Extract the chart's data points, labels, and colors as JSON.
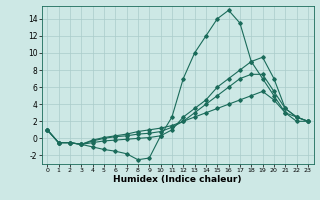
{
  "xlabel": "Humidex (Indice chaleur)",
  "background_color": "#cde8e5",
  "grid_color": "#aaccca",
  "line_color": "#1a6b5a",
  "xlim": [
    -0.5,
    23.5
  ],
  "ylim": [
    -3,
    15.5
  ],
  "yticks": [
    -2,
    0,
    2,
    4,
    6,
    8,
    10,
    12,
    14
  ],
  "xticks": [
    0,
    1,
    2,
    3,
    4,
    5,
    6,
    7,
    8,
    9,
    10,
    11,
    12,
    13,
    14,
    15,
    16,
    17,
    18,
    19,
    20,
    21,
    22,
    23
  ],
  "series": [
    {
      "x": [
        0,
        1,
        2,
        3,
        4,
        5,
        6,
        7,
        8,
        9,
        10,
        11,
        12,
        13,
        14,
        15,
        16,
        17,
        18,
        19,
        20,
        21,
        22,
        23
      ],
      "y": [
        1.0,
        -0.5,
        -0.5,
        -0.7,
        -1.0,
        -1.3,
        -1.5,
        -1.8,
        -2.5,
        -2.3,
        0.3,
        2.5,
        7.0,
        10.0,
        12.0,
        14.0,
        15.0,
        13.5,
        9.0,
        7.0,
        5.0,
        3.0,
        2.0,
        2.0
      ]
    },
    {
      "x": [
        0,
        1,
        2,
        3,
        4,
        5,
        6,
        7,
        8,
        9,
        10,
        11,
        12,
        13,
        14,
        15,
        16,
        17,
        18,
        19,
        20,
        21,
        22,
        23
      ],
      "y": [
        1.0,
        -0.5,
        -0.5,
        -0.7,
        -0.5,
        -0.3,
        -0.2,
        -0.1,
        0.0,
        0.1,
        0.3,
        1.0,
        2.5,
        3.5,
        4.5,
        6.0,
        7.0,
        8.0,
        9.0,
        9.5,
        7.0,
        3.5,
        2.5,
        2.0
      ]
    },
    {
      "x": [
        0,
        1,
        2,
        3,
        4,
        5,
        6,
        7,
        8,
        9,
        10,
        11,
        12,
        13,
        14,
        15,
        16,
        17,
        18,
        19,
        20,
        21,
        22,
        23
      ],
      "y": [
        1.0,
        -0.5,
        -0.5,
        -0.7,
        -0.3,
        0.0,
        0.2,
        0.3,
        0.5,
        0.6,
        0.8,
        1.3,
        2.0,
        3.0,
        4.0,
        5.0,
        6.0,
        7.0,
        7.5,
        7.5,
        5.5,
        3.5,
        2.5,
        2.0
      ]
    },
    {
      "x": [
        0,
        1,
        2,
        3,
        4,
        5,
        6,
        7,
        8,
        9,
        10,
        11,
        12,
        13,
        14,
        15,
        16,
        17,
        18,
        19,
        20,
        21,
        22,
        23
      ],
      "y": [
        1.0,
        -0.5,
        -0.5,
        -0.7,
        -0.2,
        0.1,
        0.3,
        0.5,
        0.8,
        1.0,
        1.2,
        1.5,
        2.0,
        2.5,
        3.0,
        3.5,
        4.0,
        4.5,
        5.0,
        5.5,
        4.5,
        3.0,
        2.5,
        2.0
      ]
    }
  ]
}
